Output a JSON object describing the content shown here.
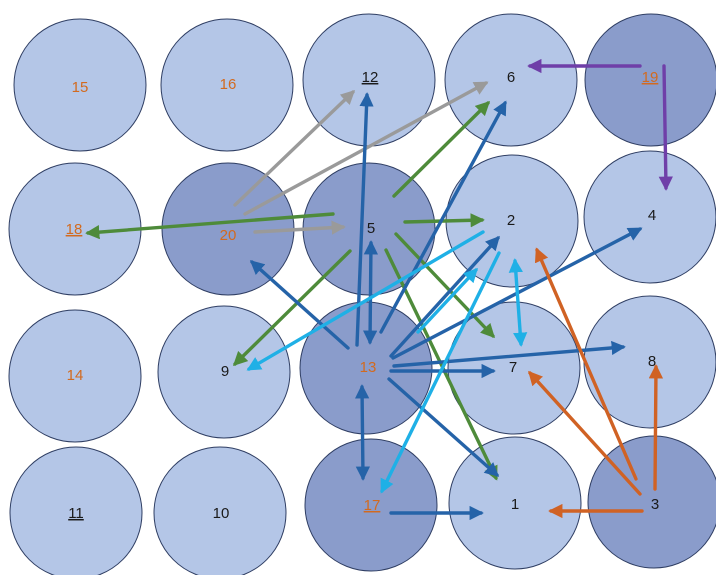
{
  "colors": {
    "light_fill": "#B4C6E7",
    "dark_fill": "#8A9CCB",
    "stroke": "#2F3E63",
    "label_black": "#1a1a1a",
    "label_orange": "#D26A1F",
    "arrow_green": "#4E8B3A",
    "arrow_gray": "#9A9A9A",
    "arrow_blue": "#2563A8",
    "arrow_cyan": "#1FB0E6",
    "arrow_orange": "#D06224",
    "arrow_purple": "#6F3FA8"
  },
  "nodes": [
    {
      "id": "15",
      "label": "15",
      "fill": "light",
      "label_color": "orange",
      "underline": false
    },
    {
      "id": "16",
      "label": "16",
      "fill": "light",
      "label_color": "orange",
      "underline": false
    },
    {
      "id": "12",
      "label": "12",
      "fill": "light",
      "label_color": "black",
      "underline": true
    },
    {
      "id": "6",
      "label": "6",
      "fill": "light",
      "label_color": "black",
      "underline": false
    },
    {
      "id": "19",
      "label": "19",
      "fill": "dark",
      "label_color": "orange",
      "underline": true
    },
    {
      "id": "18",
      "label": "18",
      "fill": "light",
      "label_color": "orange",
      "underline": true
    },
    {
      "id": "20",
      "label": "20",
      "fill": "dark",
      "label_color": "orange",
      "underline": false
    },
    {
      "id": "5",
      "label": "5",
      "fill": "dark",
      "label_color": "black",
      "underline": false
    },
    {
      "id": "2",
      "label": "2",
      "fill": "light",
      "label_color": "black",
      "underline": false
    },
    {
      "id": "4",
      "label": "4",
      "fill": "light",
      "label_color": "black",
      "underline": false
    },
    {
      "id": "14",
      "label": "14",
      "fill": "light",
      "label_color": "orange",
      "underline": false
    },
    {
      "id": "9",
      "label": "9",
      "fill": "light",
      "label_color": "black",
      "underline": false
    },
    {
      "id": "13",
      "label": "13",
      "fill": "dark",
      "label_color": "orange",
      "underline": false
    },
    {
      "id": "7",
      "label": "7",
      "fill": "light",
      "label_color": "black",
      "underline": false
    },
    {
      "id": "8",
      "label": "8",
      "fill": "light",
      "label_color": "black",
      "underline": false
    },
    {
      "id": "11",
      "label": "11",
      "fill": "light",
      "label_color": "black",
      "underline": true
    },
    {
      "id": "10",
      "label": "10",
      "fill": "light",
      "label_color": "black",
      "underline": false
    },
    {
      "id": "17",
      "label": "17",
      "fill": "dark",
      "label_color": "orange",
      "underline": true
    },
    {
      "id": "1",
      "label": "1",
      "fill": "light",
      "label_color": "black",
      "underline": false
    },
    {
      "id": "3",
      "label": "3",
      "fill": "dark",
      "label_color": "black",
      "underline": false
    }
  ],
  "edges": [
    {
      "from": "20",
      "to": "12",
      "color": "gray",
      "head": "end"
    },
    {
      "from": "20",
      "to": "6",
      "color": "gray",
      "head": "end"
    },
    {
      "from": "20",
      "to": "5",
      "color": "gray",
      "head": "end"
    },
    {
      "from": "5",
      "to": "18",
      "color": "green",
      "head": "end"
    },
    {
      "from": "5",
      "to": "6",
      "color": "green",
      "head": "end"
    },
    {
      "from": "5",
      "to": "2",
      "color": "green",
      "head": "end"
    },
    {
      "from": "5",
      "to": "9",
      "color": "green",
      "head": "end"
    },
    {
      "from": "5",
      "to": "7",
      "color": "green",
      "head": "end"
    },
    {
      "from": "5",
      "to": "1",
      "color": "green",
      "head": "end"
    },
    {
      "from": "19",
      "to": "6",
      "color": "purple",
      "head": "end"
    },
    {
      "from": "19",
      "to": "4",
      "color": "purple",
      "head": "end"
    },
    {
      "from": "13",
      "to": "12",
      "color": "blue",
      "head": "end"
    },
    {
      "from": "13",
      "to": "6",
      "color": "blue",
      "head": "end"
    },
    {
      "from": "13",
      "to": "5",
      "color": "blue",
      "head": "both"
    },
    {
      "from": "13",
      "to": "20",
      "color": "blue",
      "head": "end"
    },
    {
      "from": "13",
      "to": "2",
      "color": "blue",
      "head": "end"
    },
    {
      "from": "13",
      "to": "4",
      "color": "blue",
      "head": "end"
    },
    {
      "from": "13",
      "to": "7",
      "color": "blue",
      "head": "end"
    },
    {
      "from": "13",
      "to": "8",
      "color": "blue",
      "head": "end"
    },
    {
      "from": "13",
      "to": "1",
      "color": "blue",
      "head": "end"
    },
    {
      "from": "13",
      "to": "17",
      "color": "blue",
      "head": "both"
    },
    {
      "from": "17",
      "to": "1",
      "color": "blue",
      "head": "end"
    },
    {
      "from": "2",
      "to": "9",
      "color": "cyan",
      "head": "end"
    },
    {
      "from": "2",
      "to": "17",
      "color": "cyan",
      "head": "end"
    },
    {
      "from": "2",
      "to": "7",
      "color": "cyan",
      "head": "both"
    },
    {
      "from": "13",
      "to": "2",
      "color": "cyan",
      "head": "end"
    },
    {
      "from": "3",
      "to": "2",
      "color": "orange",
      "head": "end"
    },
    {
      "from": "3",
      "to": "7",
      "color": "orange",
      "head": "end"
    },
    {
      "from": "3",
      "to": "8",
      "color": "orange",
      "head": "end"
    },
    {
      "from": "3",
      "to": "1",
      "color": "orange",
      "head": "end"
    }
  ]
}
